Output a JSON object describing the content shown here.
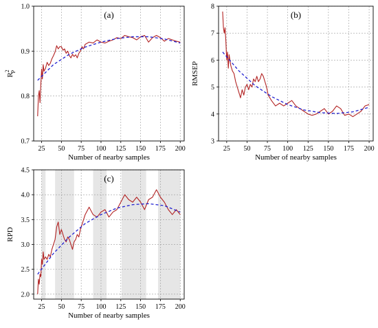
{
  "chart_data": [
    {
      "type": "line",
      "panel_label": "(a)",
      "xlabel": "Number of nearby samples",
      "ylabel": "R",
      "ylabel_sup": "2",
      "ylabel_sub": "P",
      "xlim": [
        15,
        205
      ],
      "ylim": [
        0.7,
        1.0
      ],
      "xticks": [
        25,
        50,
        75,
        100,
        125,
        150,
        175,
        200
      ],
      "yticks": [
        0.7,
        0.8,
        0.9,
        1.0
      ],
      "ytick_labels": [
        "0.7",
        "0.8",
        "0.9",
        "1.0"
      ],
      "grid": true,
      "series": [
        {
          "style": "solid",
          "color": "#b22222",
          "x": [
            20,
            21,
            22,
            23,
            24,
            25,
            26,
            27,
            28,
            30,
            32,
            34,
            36,
            38,
            40,
            42,
            44,
            46,
            48,
            50,
            52,
            54,
            56,
            58,
            60,
            62,
            64,
            66,
            68,
            70,
            72,
            74,
            76,
            78,
            80,
            85,
            90,
            95,
            100,
            105,
            110,
            115,
            120,
            125,
            130,
            135,
            140,
            145,
            150,
            155,
            160,
            165,
            170,
            175,
            180,
            185,
            190,
            195,
            200
          ],
          "y": [
            0.755,
            0.8,
            0.812,
            0.785,
            0.825,
            0.86,
            0.838,
            0.87,
            0.855,
            0.862,
            0.875,
            0.868,
            0.873,
            0.883,
            0.89,
            0.898,
            0.912,
            0.905,
            0.91,
            0.91,
            0.902,
            0.905,
            0.895,
            0.9,
            0.89,
            0.885,
            0.893,
            0.888,
            0.892,
            0.885,
            0.895,
            0.9,
            0.91,
            0.905,
            0.915,
            0.92,
            0.918,
            0.925,
            0.92,
            0.918,
            0.922,
            0.925,
            0.93,
            0.928,
            0.935,
            0.932,
            0.93,
            0.925,
            0.932,
            0.935,
            0.92,
            0.93,
            0.935,
            0.93,
            0.922,
            0.928,
            0.925,
            0.922,
            0.92
          ]
        },
        {
          "style": "dashed",
          "color": "#1f1fd0",
          "x": [
            20,
            40,
            60,
            80,
            100,
            120,
            140,
            160,
            180,
            200
          ],
          "y": [
            0.835,
            0.87,
            0.893,
            0.909,
            0.92,
            0.928,
            0.932,
            0.932,
            0.927,
            0.918
          ]
        }
      ]
    },
    {
      "type": "line",
      "panel_label": "(b)",
      "xlabel": "Number of nearby samples",
      "ylabel": "RMSEP",
      "xlim": [
        15,
        205
      ],
      "ylim": [
        3,
        8
      ],
      "xticks": [
        25,
        50,
        75,
        100,
        125,
        150,
        175,
        200
      ],
      "yticks": [
        3,
        4,
        5,
        6,
        7,
        8
      ],
      "ytick_labels": [
        "3",
        "4",
        "5",
        "6",
        "7",
        "8"
      ],
      "grid": true,
      "series": [
        {
          "style": "solid",
          "color": "#b22222",
          "x": [
            20,
            21,
            22,
            23,
            24,
            25,
            26,
            27,
            28,
            30,
            32,
            34,
            36,
            38,
            40,
            42,
            44,
            46,
            48,
            50,
            52,
            54,
            56,
            58,
            60,
            62,
            64,
            66,
            68,
            70,
            72,
            74,
            76,
            78,
            80,
            85,
            90,
            95,
            100,
            105,
            110,
            115,
            120,
            125,
            130,
            135,
            140,
            145,
            150,
            155,
            160,
            165,
            170,
            175,
            180,
            185,
            190,
            195,
            200
          ],
          "y": [
            7.8,
            7.2,
            7.0,
            7.2,
            6.7,
            6.0,
            6.3,
            5.7,
            6.2,
            5.8,
            5.6,
            5.5,
            5.2,
            5.0,
            4.8,
            4.6,
            4.9,
            4.7,
            5.0,
            5.1,
            4.9,
            5.1,
            5.0,
            5.3,
            5.2,
            5.4,
            5.2,
            5.3,
            5.5,
            5.4,
            5.2,
            5.0,
            4.7,
            4.6,
            4.5,
            4.3,
            4.4,
            4.3,
            4.4,
            4.5,
            4.3,
            4.2,
            4.1,
            4.0,
            3.95,
            4.0,
            4.1,
            4.2,
            4.0,
            4.1,
            4.3,
            4.2,
            3.95,
            4.0,
            3.9,
            4.0,
            4.1,
            4.3,
            4.35
          ]
        },
        {
          "style": "dashed",
          "color": "#1f1fd0",
          "x": [
            20,
            40,
            60,
            80,
            100,
            120,
            140,
            160,
            180,
            200
          ],
          "y": [
            6.3,
            5.6,
            5.05,
            4.65,
            4.35,
            4.15,
            4.05,
            4.02,
            4.08,
            4.25
          ]
        }
      ]
    },
    {
      "type": "line",
      "panel_label": "(c)",
      "xlabel": "Number of nearby samples",
      "ylabel": "RPD",
      "xlim": [
        15,
        205
      ],
      "ylim": [
        1.9,
        4.5
      ],
      "xticks": [
        25,
        50,
        75,
        100,
        125,
        150,
        175,
        200
      ],
      "yticks": [
        2.0,
        2.5,
        3.0,
        3.5,
        4.0,
        4.5
      ],
      "ytick_labels": [
        "2.0",
        "2.5",
        "3.0",
        "3.5",
        "4.0",
        "4.5"
      ],
      "grid": true,
      "shaded_x_ranges": [
        [
          25,
          30
        ],
        [
          42,
          66
        ],
        [
          90,
          107
        ],
        [
          126,
          157
        ],
        [
          172,
          200
        ]
      ],
      "series": [
        {
          "style": "solid",
          "color": "#b22222",
          "x": [
            20,
            21,
            22,
            23,
            24,
            25,
            26,
            27,
            28,
            30,
            32,
            34,
            36,
            38,
            40,
            42,
            44,
            46,
            48,
            50,
            52,
            54,
            56,
            58,
            60,
            62,
            64,
            66,
            68,
            70,
            72,
            74,
            76,
            78,
            80,
            85,
            90,
            95,
            100,
            105,
            110,
            115,
            120,
            125,
            130,
            135,
            140,
            145,
            150,
            155,
            160,
            165,
            170,
            175,
            180,
            185,
            190,
            195,
            200
          ],
          "y": [
            2.0,
            2.3,
            2.2,
            2.4,
            2.35,
            2.7,
            2.6,
            2.85,
            2.7,
            2.75,
            2.7,
            2.8,
            2.75,
            2.9,
            3.0,
            3.1,
            3.35,
            3.45,
            3.2,
            3.3,
            3.2,
            3.1,
            3.05,
            3.15,
            3.1,
            3.0,
            2.9,
            3.05,
            3.1,
            3.2,
            3.15,
            3.3,
            3.4,
            3.5,
            3.6,
            3.75,
            3.6,
            3.55,
            3.65,
            3.7,
            3.55,
            3.65,
            3.7,
            3.85,
            4.0,
            3.9,
            3.85,
            3.95,
            3.85,
            3.7,
            3.9,
            3.95,
            4.1,
            3.95,
            3.85,
            3.7,
            3.6,
            3.7,
            3.6
          ]
        },
        {
          "style": "dashed",
          "color": "#1f1fd0",
          "x": [
            20,
            40,
            60,
            80,
            100,
            120,
            140,
            160,
            180,
            200
          ],
          "y": [
            2.4,
            2.82,
            3.15,
            3.42,
            3.6,
            3.73,
            3.8,
            3.82,
            3.78,
            3.65
          ]
        }
      ]
    }
  ]
}
